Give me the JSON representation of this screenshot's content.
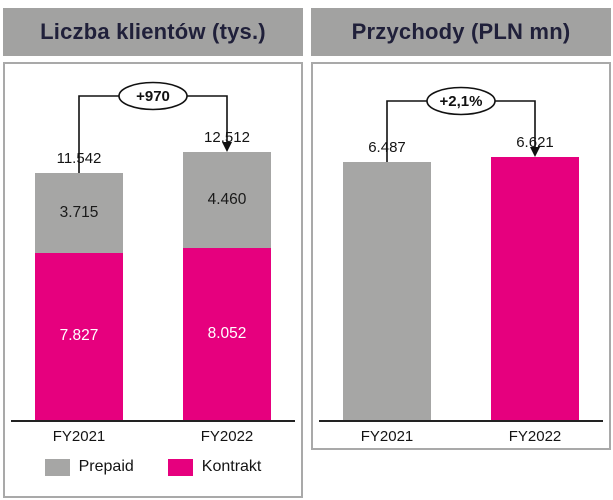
{
  "colors": {
    "magenta": "#e6007e",
    "gray": "#a6a6a5",
    "header_bg": "#a2a2a1",
    "title_text": "#20203a"
  },
  "chart_data": [
    {
      "type": "stacked-bar",
      "title": "Liczba klientów (tys.)",
      "unit": "tys.",
      "categories": [
        "FY2021",
        "FY2022"
      ],
      "series": [
        {
          "name": "Kontrakt",
          "color": "#e6007e",
          "values": [
            7827,
            8052
          ],
          "segment_labels": [
            "7.827",
            "8.052"
          ],
          "segment_label_color": "#ffffff"
        },
        {
          "name": "Prepaid",
          "color": "#a6a6a5",
          "values": [
            3715,
            4460
          ],
          "segment_labels": [
            "3.715",
            "4.460"
          ],
          "segment_label_color": "#1a1a1a"
        }
      ],
      "totals": [
        11542,
        12512
      ],
      "total_labels": [
        "11.542",
        "12.512"
      ],
      "annotation": "+970",
      "legend_position": "bottom",
      "legend": [
        {
          "label": "Prepaid",
          "color": "#a6a6a5"
        },
        {
          "label": "Kontrakt",
          "color": "#e6007e"
        }
      ]
    },
    {
      "type": "bar",
      "title": "Przychody (PLN mn)",
      "unit": "PLN mn",
      "categories": [
        "FY2021",
        "FY2022"
      ],
      "series": [
        {
          "name": "Przychody",
          "colors": [
            "#a6a6a5",
            "#e6007e"
          ],
          "values": [
            6487,
            6621
          ]
        }
      ],
      "totals": [
        6487,
        6621
      ],
      "total_labels": [
        "6.487",
        "6.621"
      ],
      "annotation": "+2,1%"
    }
  ]
}
